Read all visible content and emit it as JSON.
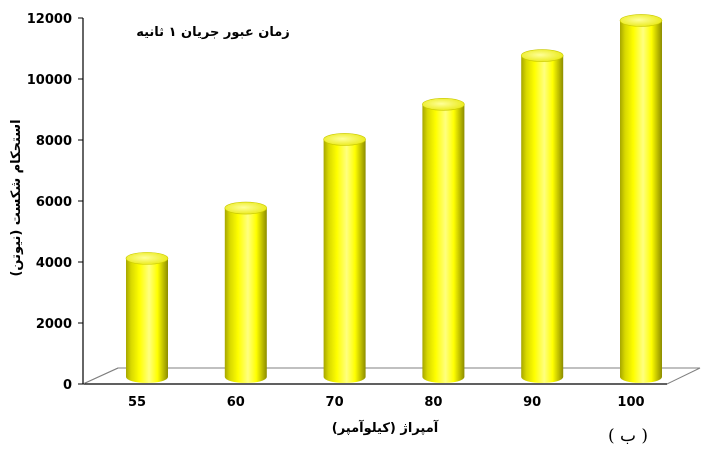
{
  "chart_data": {
    "type": "bar",
    "title": "زمان عبور جریان ۱ ثانیه",
    "xlabel": "آمپراژ (کیلوآمپر)",
    "ylabel": "استحکام شکست (نیوتن)",
    "categories": [
      "55",
      "60",
      "70",
      "80",
      "90",
      "100"
    ],
    "values": [
      4250,
      5900,
      8150,
      9300,
      10900,
      12050
    ],
    "ylim": [
      0,
      12000
    ],
    "yticks": [
      0,
      2000,
      4000,
      6000,
      8000,
      10000,
      12000
    ],
    "grid": false,
    "legend": "none",
    "style": "3d-cylinder"
  },
  "panel_label": "( ب )",
  "colors": {
    "bar_fill": "#ffff00",
    "bar_shadow": "#8c8c00",
    "bar_top": "#ffff33",
    "axis": "#000000",
    "floor": "#808080"
  }
}
